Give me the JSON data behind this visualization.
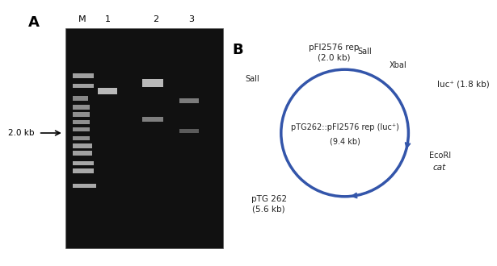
{
  "panel_A_label": "A",
  "panel_B_label": "B",
  "gel_bg": "#111111",
  "gel_border": "#333333",
  "band_color": "#cccccc",
  "label_2kb": "2.0 kb",
  "lanes": [
    "M",
    "1",
    "2",
    "3"
  ],
  "circle_color": "#3355aa",
  "circle_linewidth": 2.5,
  "center_label_line1": "pTG262::pFI2576 rep (luc⁺)",
  "center_label_line2": "(9.4 kb)",
  "segment_labels": {
    "top": "pFI2576 rep\n(2.0 kb)",
    "right_top": "luc⁺ (1.8 kb)",
    "right_bottom": "cat",
    "bottom_left": "pTG 262\n(5.6 kb)"
  },
  "site_labels": {
    "SalI_left": "SalI",
    "SalI_top": "SalI",
    "XbaI": "XbaI",
    "EcoRI": "EcoRI"
  },
  "text_color": "#222222",
  "arrow_color": "#3355aa"
}
